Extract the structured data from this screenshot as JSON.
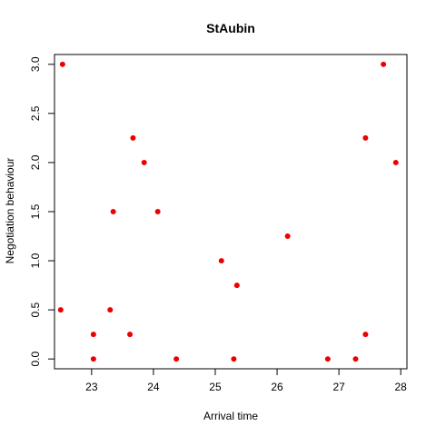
{
  "chart_data": {
    "type": "scatter",
    "title": "StAubin",
    "xlabel": "Arrival time",
    "ylabel": "Negotiation behaviour",
    "xlim": [
      22.4,
      28.1
    ],
    "ylim": [
      -0.1,
      3.1
    ],
    "x_ticks": [
      23,
      24,
      25,
      26,
      27,
      28
    ],
    "x_tick_labels": [
      "23",
      "24",
      "25",
      "26",
      "27",
      "28"
    ],
    "y_ticks": [
      0.0,
      0.5,
      1.0,
      1.5,
      2.0,
      2.5,
      3.0
    ],
    "y_tick_labels": [
      "0.0",
      "0.5",
      "1.0",
      "1.5",
      "2.0",
      "2.5",
      "3.0"
    ],
    "grid": false,
    "point_color": "#ee0000",
    "points": [
      {
        "x": 22.53,
        "y": 3.0
      },
      {
        "x": 22.5,
        "y": 0.5
      },
      {
        "x": 23.03,
        "y": 0.25
      },
      {
        "x": 23.03,
        "y": 0.0
      },
      {
        "x": 23.3,
        "y": 0.5
      },
      {
        "x": 23.35,
        "y": 1.5
      },
      {
        "x": 23.62,
        "y": 0.25
      },
      {
        "x": 23.67,
        "y": 2.25
      },
      {
        "x": 23.85,
        "y": 2.0
      },
      {
        "x": 24.07,
        "y": 1.5
      },
      {
        "x": 24.37,
        "y": 0.0
      },
      {
        "x": 25.1,
        "y": 1.0
      },
      {
        "x": 25.3,
        "y": 0.0
      },
      {
        "x": 25.35,
        "y": 0.75
      },
      {
        "x": 26.17,
        "y": 1.25
      },
      {
        "x": 26.82,
        "y": 0.0
      },
      {
        "x": 27.27,
        "y": 0.0
      },
      {
        "x": 27.43,
        "y": 0.25
      },
      {
        "x": 27.43,
        "y": 2.25
      },
      {
        "x": 27.72,
        "y": 3.0
      },
      {
        "x": 27.92,
        "y": 2.0
      }
    ]
  }
}
